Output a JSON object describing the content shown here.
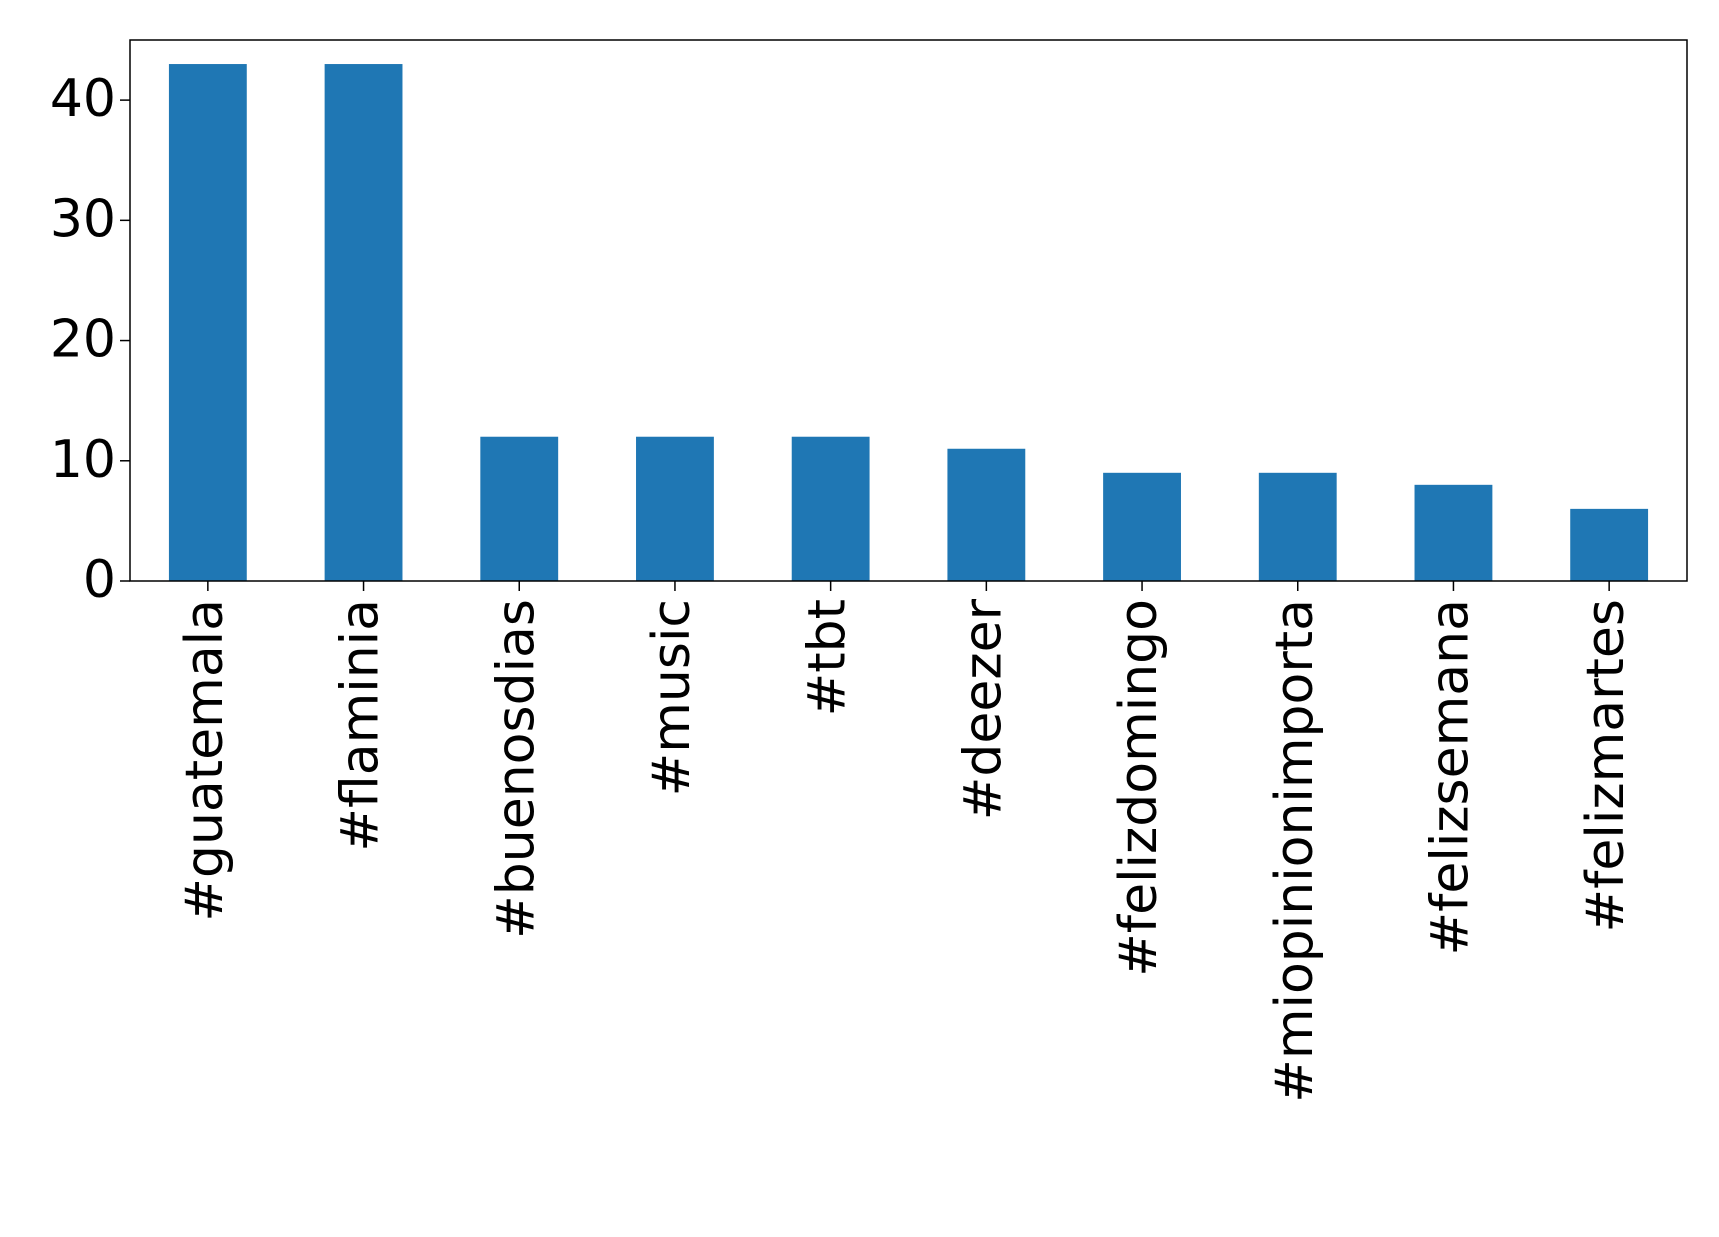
{
  "chart_data": {
    "type": "bar",
    "categories": [
      "#guatemala",
      "#flaminia",
      "#buenosdias",
      "#music",
      "#tbt",
      "#deezer",
      "#felizdomingo",
      "#miopinionimporta",
      "#felizsemana",
      "#felizmartes"
    ],
    "values": [
      43,
      43,
      12,
      12,
      12,
      11,
      9,
      9,
      8,
      6
    ],
    "color": "#1f77b4",
    "ylim": [
      0,
      45
    ],
    "yticks": [
      0,
      10,
      20,
      30,
      40
    ],
    "grid": false
  }
}
